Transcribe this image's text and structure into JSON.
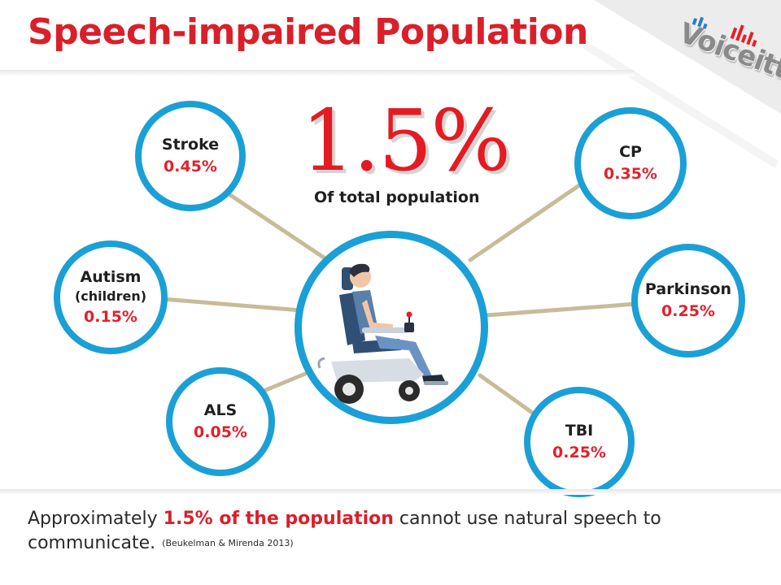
{
  "title": "Speech-impaired Population",
  "logo": {
    "text": "Voiceitt",
    "icon": "voiceitt-soundwave-logo"
  },
  "total": {
    "value": "1.5%",
    "caption": "Of total population"
  },
  "center_image": {
    "icon": "wheelchair-user-illustration"
  },
  "conditions": [
    {
      "label": "Stroke",
      "sub": "",
      "value": "0.45%"
    },
    {
      "label": "Autism",
      "sub": "(children)",
      "value": "0.15%"
    },
    {
      "label": "ALS",
      "sub": "",
      "value": "0.05%"
    },
    {
      "label": "CP",
      "sub": "",
      "value": "0.35%"
    },
    {
      "label": "Parkinson",
      "sub": "",
      "value": "0.25%"
    },
    {
      "label": "TBI",
      "sub": "",
      "value": "0.25%"
    }
  ],
  "footer": {
    "prefix": "Approximately ",
    "highlight": "1.5% of the population",
    "suffix": " cannot use natural speech to communicate.",
    "citation": "(Beukelman & Mirenda 2013)"
  },
  "colors": {
    "accent_red": "#d9202a",
    "circle_blue": "#1aa0d6",
    "connector_tan": "#c8bb98"
  }
}
